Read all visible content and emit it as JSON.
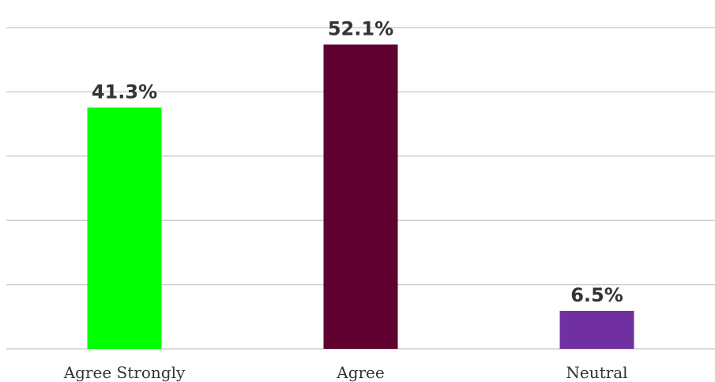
{
  "chart_data": {
    "type": "bar",
    "categories": [
      "Agree Strongly",
      "Agree",
      "Neutral"
    ],
    "values": [
      41.3,
      52.1,
      6.5
    ],
    "value_labels": [
      "41.3%",
      "52.1%",
      "6.5%"
    ],
    "colors": [
      "#00ff00",
      "#5f0030",
      "#7030a0"
    ],
    "title": "",
    "xlabel": "",
    "ylabel": "",
    "ylim": [
      0,
      56
    ],
    "grid": true,
    "legend": "none"
  }
}
